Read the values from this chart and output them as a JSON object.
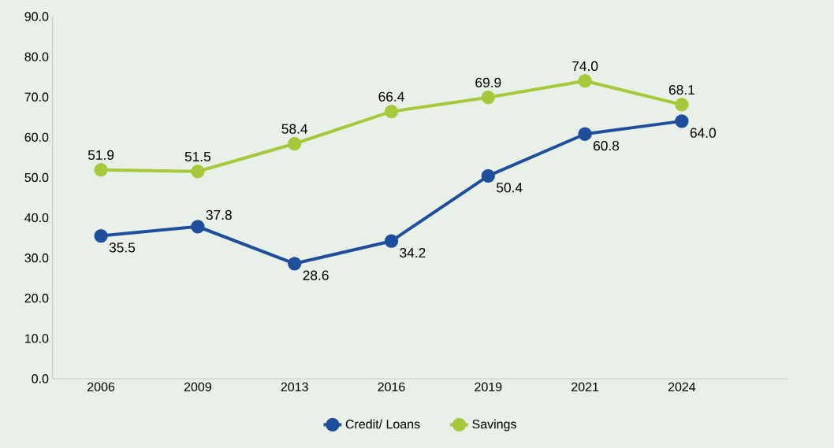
{
  "chart_data": {
    "type": "line",
    "categories": [
      "2006",
      "2009",
      "2013",
      "2016",
      "2019",
      "2021",
      "2024"
    ],
    "series": [
      {
        "name": "Credit/ Loans",
        "color": "#1f4e9c",
        "values": [
          35.5,
          37.8,
          28.6,
          34.2,
          50.4,
          60.8,
          64.0
        ],
        "value_labels": [
          "35.5",
          "37.8",
          "28.6",
          "34.2",
          "50.4",
          "60.8",
          "64.0"
        ]
      },
      {
        "name": "Savings",
        "color": "#a8c83c",
        "values": [
          51.9,
          51.5,
          58.4,
          66.4,
          69.9,
          74.0,
          68.1
        ],
        "value_labels": [
          "51.9",
          "51.5",
          "58.4",
          "66.4",
          "69.9",
          "74.0",
          "68.1"
        ]
      }
    ],
    "ylim": [
      0,
      90
    ],
    "yticks": [
      {
        "value": 0,
        "label": "0.0"
      },
      {
        "value": 10,
        "label": "10.0"
      },
      {
        "value": 20,
        "label": "20.0"
      },
      {
        "value": 30,
        "label": "30.0"
      },
      {
        "value": 40,
        "label": "40.0"
      },
      {
        "value": 50,
        "label": "50.0"
      },
      {
        "value": 60,
        "label": "60.0"
      },
      {
        "value": 70,
        "label": "70.0"
      },
      {
        "value": 80,
        "label": "80.0"
      },
      {
        "value": 90,
        "label": "90.0"
      }
    ],
    "grid": false,
    "legend": "bottom",
    "marker": "circle",
    "line_style": "solid"
  }
}
